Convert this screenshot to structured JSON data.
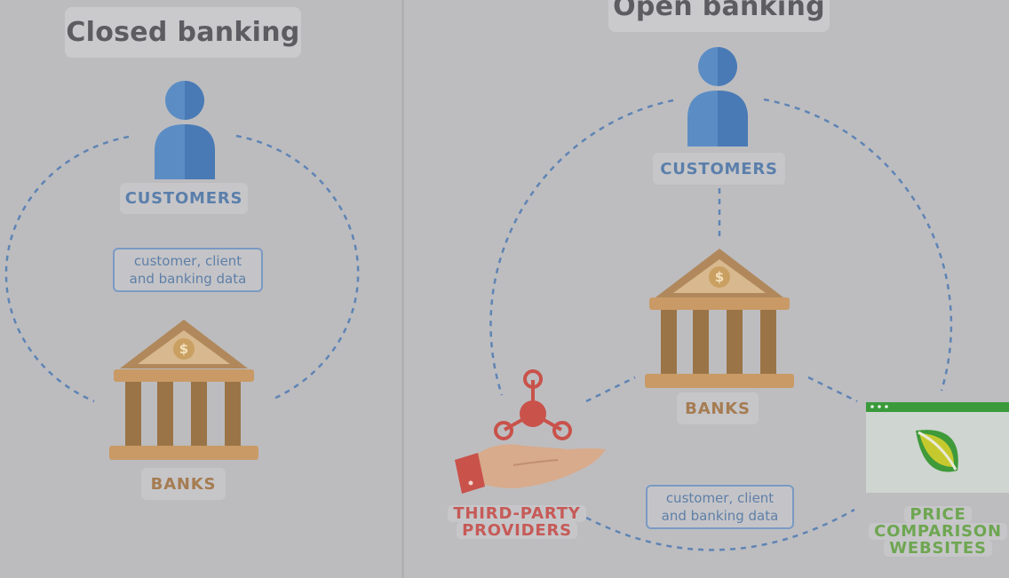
{
  "closed": {
    "title": "Closed banking",
    "customers_label": "CUSTOMERS",
    "data_line1": "customer, client",
    "data_line2": "and banking data",
    "banks_label": "BANKS"
  },
  "open": {
    "title": "Open banking",
    "customers_label": "CUSTOMERS",
    "banks_label": "BANKS",
    "data_line1": "customer, client",
    "data_line2": "and banking data",
    "tpp_line1": "THIRD-PARTY",
    "tpp_line2": "PROVIDERS",
    "pcw_line1": "PRICE",
    "pcw_line2": "COMPARISON",
    "pcw_line3": "WEBSITES"
  },
  "icons": {
    "bank_symbol": "$"
  },
  "colors": {
    "customer_blue": "#5b8dc4",
    "bank_tan": "#b0885b",
    "provider_red": "#c9524a",
    "website_green": "#3a9a3a"
  }
}
